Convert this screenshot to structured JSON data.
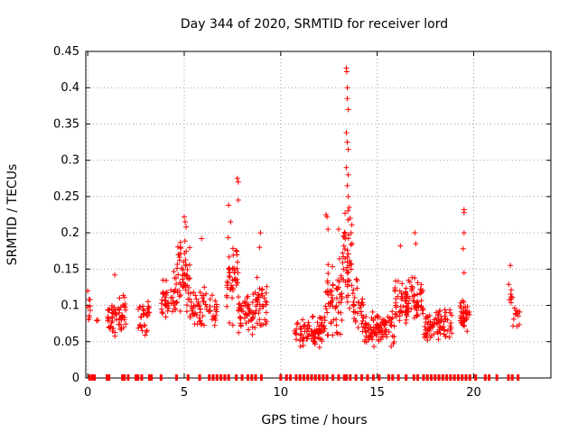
{
  "chart_data": {
    "type": "scatter",
    "title": "Day 344 of 2020, SRMTID for receiver lord",
    "xlabel": "GPS time / hours",
    "ylabel": "SRMTID / TECUs",
    "xlim": [
      -0.1,
      24.0
    ],
    "ylim": [
      0,
      0.45
    ],
    "grid": true,
    "legend": "none",
    "marker": "plus",
    "color": "#ff0000",
    "x_ticks": [
      0,
      5,
      10,
      15,
      20
    ],
    "x_tick_labels": [
      "0",
      "5",
      "10",
      "15",
      "20"
    ],
    "y_ticks": [
      0,
      0.05,
      0.1,
      0.15,
      0.2,
      0.25,
      0.3,
      0.35,
      0.4,
      0.45
    ],
    "y_tick_labels": [
      "0",
      "0.05",
      "0.1",
      "0.15",
      "0.2",
      "0.25",
      "0.3",
      "0.35",
      "0.4",
      "0.45"
    ],
    "clusters": [
      {
        "x_start": 0.0,
        "x_end": 0.15,
        "y_mid": 0.095,
        "y_spread": 0.025,
        "count": 8
      },
      {
        "x_start": 0.45,
        "x_end": 0.55,
        "y_mid": 0.08,
        "y_spread": 0.005,
        "count": 3
      },
      {
        "x_start": 1.0,
        "x_end": 2.0,
        "y_mid": 0.085,
        "y_spread": 0.035,
        "count": 60
      },
      {
        "x_start": 2.6,
        "x_end": 3.2,
        "y_mid": 0.08,
        "y_spread": 0.04,
        "count": 30
      },
      {
        "x_start": 3.8,
        "x_end": 4.6,
        "y_mid": 0.11,
        "y_spread": 0.05,
        "count": 45
      },
      {
        "x_start": 4.6,
        "x_end": 5.3,
        "y_mid": 0.14,
        "y_spread": 0.07,
        "count": 55
      },
      {
        "x_start": 5.3,
        "x_end": 6.2,
        "y_mid": 0.1,
        "y_spread": 0.04,
        "count": 45
      },
      {
        "x_start": 6.2,
        "x_end": 6.7,
        "y_mid": 0.09,
        "y_spread": 0.03,
        "count": 20
      },
      {
        "x_start": 7.2,
        "x_end": 7.8,
        "y_mid": 0.14,
        "y_spread": 0.08,
        "count": 45
      },
      {
        "x_start": 7.8,
        "x_end": 8.6,
        "y_mid": 0.09,
        "y_spread": 0.04,
        "count": 50
      },
      {
        "x_start": 8.6,
        "x_end": 9.3,
        "y_mid": 0.1,
        "y_spread": 0.05,
        "count": 40
      },
      {
        "x_start": 10.7,
        "x_end": 11.3,
        "y_mid": 0.065,
        "y_spread": 0.025,
        "count": 25
      },
      {
        "x_start": 11.3,
        "x_end": 12.3,
        "y_mid": 0.065,
        "y_spread": 0.03,
        "count": 60
      },
      {
        "x_start": 12.3,
        "x_end": 13.2,
        "y_mid": 0.11,
        "y_spread": 0.07,
        "count": 60
      },
      {
        "x_start": 13.2,
        "x_end": 13.7,
        "y_mid": 0.16,
        "y_spread": 0.09,
        "count": 45
      },
      {
        "x_start": 13.7,
        "x_end": 14.3,
        "y_mid": 0.1,
        "y_spread": 0.05,
        "count": 35
      },
      {
        "x_start": 14.3,
        "x_end": 15.3,
        "y_mid": 0.065,
        "y_spread": 0.03,
        "count": 70
      },
      {
        "x_start": 15.3,
        "x_end": 15.9,
        "y_mid": 0.065,
        "y_spread": 0.035,
        "count": 30
      },
      {
        "x_start": 15.9,
        "x_end": 16.6,
        "y_mid": 0.1,
        "y_spread": 0.045,
        "count": 50
      },
      {
        "x_start": 16.6,
        "x_end": 17.4,
        "y_mid": 0.105,
        "y_spread": 0.05,
        "count": 50
      },
      {
        "x_start": 17.4,
        "x_end": 18.1,
        "y_mid": 0.07,
        "y_spread": 0.03,
        "count": 40
      },
      {
        "x_start": 18.1,
        "x_end": 18.9,
        "y_mid": 0.075,
        "y_spread": 0.035,
        "count": 45
      },
      {
        "x_start": 19.3,
        "x_end": 19.8,
        "y_mid": 0.085,
        "y_spread": 0.03,
        "count": 35
      },
      {
        "x_start": 21.8,
        "x_end": 22.0,
        "y_mid": 0.115,
        "y_spread": 0.025,
        "count": 8
      },
      {
        "x_start": 22.0,
        "x_end": 22.4,
        "y_mid": 0.085,
        "y_spread": 0.025,
        "count": 12
      }
    ],
    "peaks": [
      {
        "x": 0.0,
        "y": 0.12
      },
      {
        "x": 1.4,
        "y": 0.142
      },
      {
        "x": 4.8,
        "y": 0.18
      },
      {
        "x": 5.0,
        "y": 0.222
      },
      {
        "x": 5.05,
        "y": 0.215
      },
      {
        "x": 5.1,
        "y": 0.208
      },
      {
        "x": 5.9,
        "y": 0.192
      },
      {
        "x": 7.3,
        "y": 0.238
      },
      {
        "x": 7.4,
        "y": 0.215
      },
      {
        "x": 7.75,
        "y": 0.275
      },
      {
        "x": 7.8,
        "y": 0.27
      },
      {
        "x": 7.8,
        "y": 0.245
      },
      {
        "x": 8.95,
        "y": 0.2
      },
      {
        "x": 8.9,
        "y": 0.18
      },
      {
        "x": 12.35,
        "y": 0.225
      },
      {
        "x": 12.4,
        "y": 0.222
      },
      {
        "x": 12.45,
        "y": 0.205
      },
      {
        "x": 13.0,
        "y": 0.205
      },
      {
        "x": 13.4,
        "y": 0.427
      },
      {
        "x": 13.42,
        "y": 0.422
      },
      {
        "x": 13.45,
        "y": 0.4
      },
      {
        "x": 13.45,
        "y": 0.385
      },
      {
        "x": 13.5,
        "y": 0.37
      },
      {
        "x": 13.4,
        "y": 0.338
      },
      {
        "x": 13.45,
        "y": 0.325
      },
      {
        "x": 13.5,
        "y": 0.315
      },
      {
        "x": 13.4,
        "y": 0.29
      },
      {
        "x": 13.5,
        "y": 0.28
      },
      {
        "x": 13.45,
        "y": 0.265
      },
      {
        "x": 13.5,
        "y": 0.25
      },
      {
        "x": 13.55,
        "y": 0.235
      },
      {
        "x": 13.6,
        "y": 0.22
      },
      {
        "x": 13.65,
        "y": 0.2
      },
      {
        "x": 13.7,
        "y": 0.185
      },
      {
        "x": 16.2,
        "y": 0.182
      },
      {
        "x": 16.95,
        "y": 0.2
      },
      {
        "x": 17.0,
        "y": 0.185
      },
      {
        "x": 19.5,
        "y": 0.232
      },
      {
        "x": 19.5,
        "y": 0.228
      },
      {
        "x": 19.5,
        "y": 0.2
      },
      {
        "x": 19.45,
        "y": 0.178
      },
      {
        "x": 19.5,
        "y": 0.145
      },
      {
        "x": 21.9,
        "y": 0.155
      }
    ],
    "zero_marks_x": [
      0.1,
      0.25,
      0.35,
      1.0,
      1.1,
      1.8,
      1.9,
      2.1,
      2.5,
      2.6,
      2.8,
      3.2,
      3.3,
      3.8,
      4.6,
      5.2,
      5.8,
      6.3,
      6.5,
      6.7,
      6.9,
      7.1,
      7.3,
      7.7,
      8.0,
      8.3,
      8.5,
      8.7,
      9.0,
      10.0,
      10.3,
      10.5,
      10.8,
      11.0,
      11.2,
      11.4,
      11.6,
      11.8,
      12.0,
      12.2,
      12.4,
      12.7,
      13.0,
      13.3,
      13.4,
      13.6,
      13.9,
      14.2,
      14.5,
      14.8,
      15.1,
      15.6,
      15.8,
      16.1,
      16.5,
      16.9,
      17.1,
      17.4,
      17.6,
      17.8,
      18.0,
      18.2,
      18.4,
      18.6,
      18.8,
      19.0,
      19.2,
      19.4,
      19.6,
      19.8,
      20.1,
      20.6,
      20.8,
      21.2,
      21.8,
      22.0,
      22.3
    ]
  }
}
